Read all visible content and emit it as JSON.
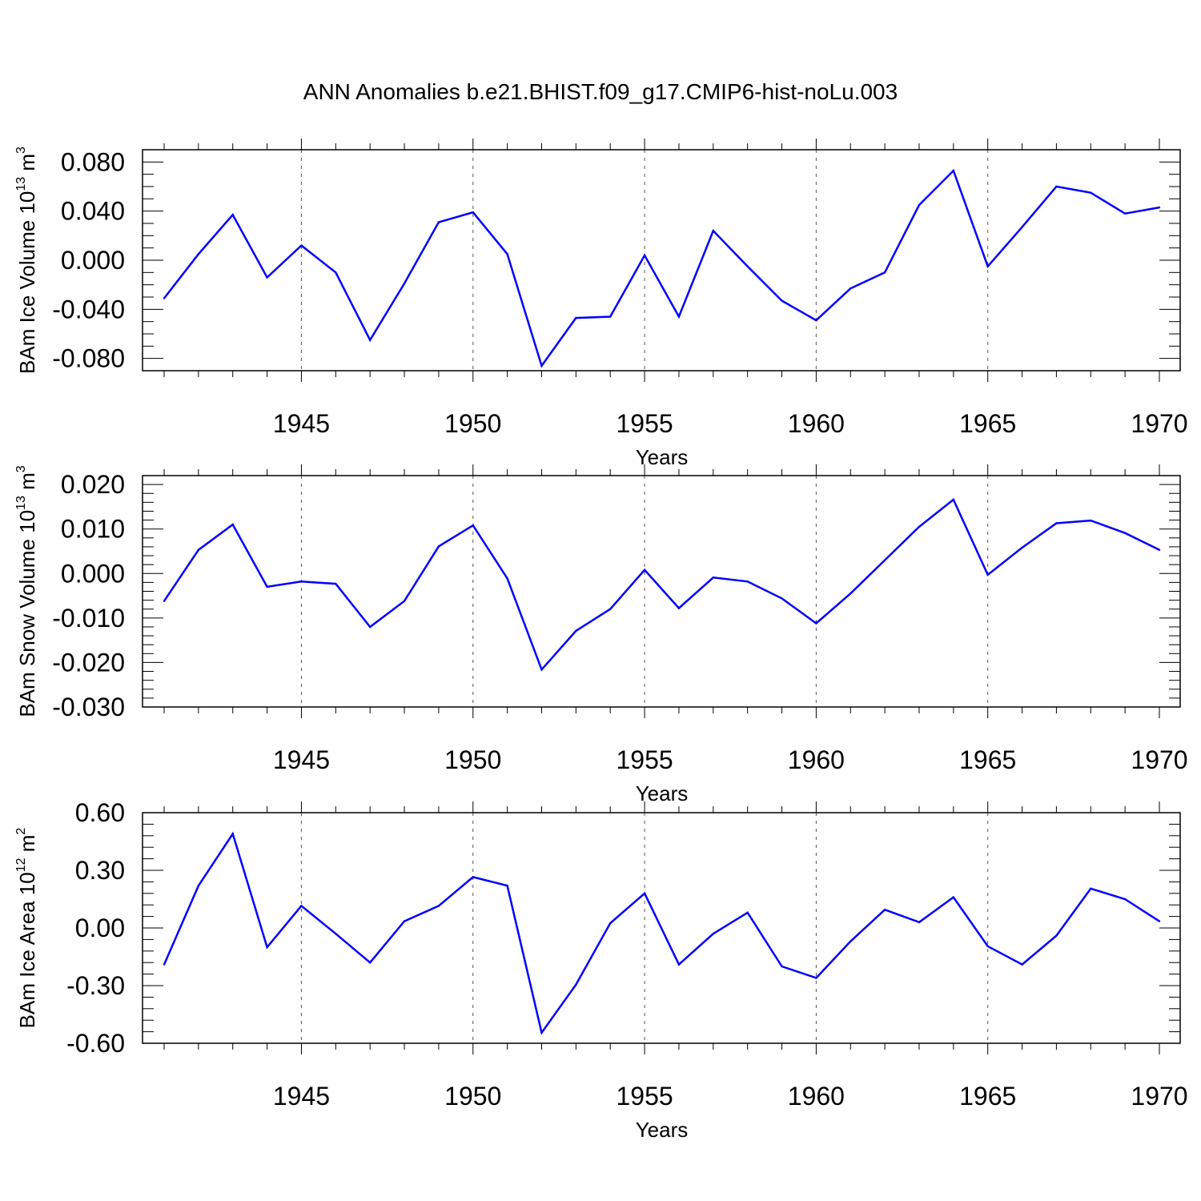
{
  "title": "ANN Anomalies b.e21.BHIST.f09_g17.CMIP6-hist-noLu.003",
  "colors": {
    "line": "#0000ff",
    "axis": "#000000",
    "grid": "#555555"
  },
  "chart_data": [
    {
      "type": "line",
      "ylabel": {
        "main": "BAm Ice Volume 10",
        "exp": "13",
        "unit": " m",
        "unit_exp": "3"
      },
      "xlabel": "Years",
      "xlim": [
        1941,
        1970
      ],
      "ylim": [
        -0.09,
        0.09
      ],
      "grid": "dashed vertical at major x ticks",
      "x_ticks": [
        1945,
        1950,
        1955,
        1960,
        1965,
        1970
      ],
      "x_tick_labels": [
        "1945",
        "1950",
        "1955",
        "1960",
        "1965",
        "1970"
      ],
      "y_ticks": [
        -0.08,
        -0.04,
        0.0,
        0.04,
        0.08
      ],
      "y_tick_labels": [
        "-0.080",
        "-0.040",
        "0.000",
        "0.040",
        "0.080"
      ],
      "y_minor_step": 0.01,
      "x": [
        1941,
        1942,
        1943,
        1944,
        1945,
        1946,
        1947,
        1948,
        1949,
        1950,
        1951,
        1952,
        1953,
        1954,
        1955,
        1956,
        1957,
        1958,
        1959,
        1960,
        1961,
        1962,
        1963,
        1964,
        1965,
        1966,
        1967,
        1968,
        1969,
        1970
      ],
      "series": [
        {
          "values": [
            -0.031,
            0.005,
            0.037,
            -0.014,
            0.012,
            -0.01,
            -0.065,
            -0.019,
            0.031,
            0.039,
            0.005,
            -0.086,
            -0.047,
            -0.046,
            0.004,
            -0.046,
            0.024,
            -0.005,
            -0.033,
            -0.049,
            -0.023,
            -0.01,
            0.045,
            0.073,
            -0.005,
            0.027,
            0.06,
            0.055,
            0.038,
            0.043
          ]
        }
      ]
    },
    {
      "type": "line",
      "ylabel": {
        "main": "BAm Snow Volume 10",
        "exp": "13",
        "unit": " m",
        "unit_exp": "3"
      },
      "xlabel": "Years",
      "xlim": [
        1941,
        1970
      ],
      "ylim": [
        -0.03,
        0.022
      ],
      "grid": "dashed vertical at major x ticks",
      "x_ticks": [
        1945,
        1950,
        1955,
        1960,
        1965,
        1970
      ],
      "x_tick_labels": [
        "1945",
        "1950",
        "1955",
        "1960",
        "1965",
        "1970"
      ],
      "y_ticks": [
        -0.03,
        -0.02,
        -0.01,
        0.0,
        0.01,
        0.02
      ],
      "y_tick_labels": [
        "-0.030",
        "-0.020",
        "-0.010",
        "0.000",
        "0.010",
        "0.020"
      ],
      "y_minor_step": 0.002,
      "x": [
        1941,
        1942,
        1943,
        1944,
        1945,
        1946,
        1947,
        1948,
        1949,
        1950,
        1951,
        1952,
        1953,
        1954,
        1955,
        1956,
        1957,
        1958,
        1959,
        1960,
        1961,
        1962,
        1963,
        1964,
        1965,
        1966,
        1967,
        1968,
        1969,
        1970
      ],
      "series": [
        {
          "values": [
            -0.0062,
            0.0053,
            0.011,
            -0.003,
            -0.0018,
            -0.0023,
            -0.012,
            -0.0062,
            0.0061,
            0.0108,
            -0.0011,
            -0.0216,
            -0.0129,
            -0.008,
            0.0008,
            -0.0078,
            -0.0009,
            -0.0018,
            -0.0056,
            -0.0112,
            -0.0045,
            0.003,
            0.0105,
            0.0166,
            -0.0003,
            0.0058,
            0.0113,
            0.0119,
            0.0091,
            0.0053
          ]
        }
      ]
    },
    {
      "type": "line",
      "ylabel": {
        "main": "BAm Ice Area 10",
        "exp": "12",
        "unit": " m",
        "unit_exp": "2"
      },
      "xlabel": "Years",
      "xlim": [
        1941,
        1970
      ],
      "ylim": [
        -0.6,
        0.6
      ],
      "grid": "dashed vertical at major x ticks",
      "x_ticks": [
        1945,
        1950,
        1955,
        1960,
        1965,
        1970
      ],
      "x_tick_labels": [
        "1945",
        "1950",
        "1955",
        "1960",
        "1965",
        "1970"
      ],
      "y_ticks": [
        -0.6,
        -0.3,
        0.0,
        0.3,
        0.6
      ],
      "y_tick_labels": [
        "-0.60",
        "-0.30",
        "0.00",
        "0.30",
        "0.60"
      ],
      "y_minor_step": 0.06,
      "x": [
        1941,
        1942,
        1943,
        1944,
        1945,
        1946,
        1947,
        1948,
        1949,
        1950,
        1951,
        1952,
        1953,
        1954,
        1955,
        1956,
        1957,
        1958,
        1959,
        1960,
        1961,
        1962,
        1963,
        1964,
        1965,
        1966,
        1967,
        1968,
        1969,
        1970
      ],
      "series": [
        {
          "values": [
            -0.19,
            0.22,
            0.49,
            -0.1,
            0.115,
            -0.03,
            -0.18,
            0.035,
            0.115,
            0.265,
            0.22,
            -0.545,
            -0.295,
            0.025,
            0.18,
            -0.19,
            -0.03,
            0.08,
            -0.2,
            -0.26,
            -0.07,
            0.095,
            0.03,
            0.16,
            -0.095,
            -0.19,
            -0.04,
            0.205,
            0.15,
            0.035
          ]
        }
      ]
    }
  ]
}
